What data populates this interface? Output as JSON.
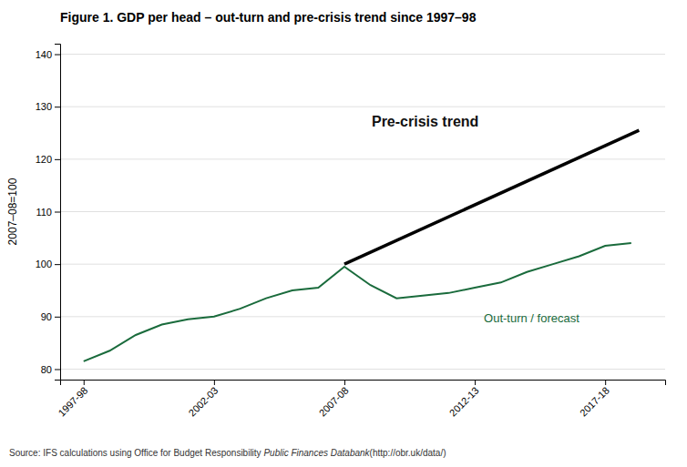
{
  "chart_data": {
    "type": "line",
    "title": "Figure 1. GDP per head – out-turn and pre-crisis trend since 1997–98",
    "y_label": "2007–08=100",
    "xlim": [
      1996.6,
      2019.8
    ],
    "xticks": [
      {
        "value": 1997.5,
        "label": "1997-98"
      },
      {
        "value": 2002.5,
        "label": "2002-03"
      },
      {
        "value": 2007.5,
        "label": "2007-08"
      },
      {
        "value": 2012.5,
        "label": "2012-13"
      },
      {
        "value": 2017.5,
        "label": "2017-18"
      }
    ],
    "ylim": [
      78,
      142
    ],
    "yticks": [
      80,
      90,
      100,
      110,
      120,
      130,
      140
    ],
    "grid": true,
    "series": [
      {
        "color": "#1a6b3c",
        "x": [
          1997.5,
          1998.5,
          1999.5,
          2000.5,
          2001.5,
          2002.5,
          2003.5,
          2004.5,
          2005.5,
          2006.5,
          2007.5,
          2008.5,
          2009.5,
          2010.5,
          2011.5,
          2012.5,
          2013.5,
          2014.5,
          2015.5,
          2016.5,
          2017.5,
          2018.5
        ],
        "values": [
          81.5,
          83.5,
          86.5,
          88.5,
          89.5,
          90.0,
          91.5,
          93.5,
          95.0,
          95.5,
          99.5,
          96.0,
          93.5,
          94.0,
          94.5,
          95.5,
          96.5,
          98.5,
          100.0,
          101.5,
          103.5,
          104.0
        ]
      },
      {
        "color": "#000000",
        "x": [
          2007.5,
          2018.8
        ],
        "values": [
          100.0,
          125.5
        ]
      }
    ],
    "annotations": [
      "Out-turn / forecast",
      "Pre-crisis trend"
    ],
    "source": [
      "Source: IFS calculations using Office for Budget Responsibility ",
      "Public Finances Databank",
      "(http://obr.uk/data/)"
    ]
  }
}
